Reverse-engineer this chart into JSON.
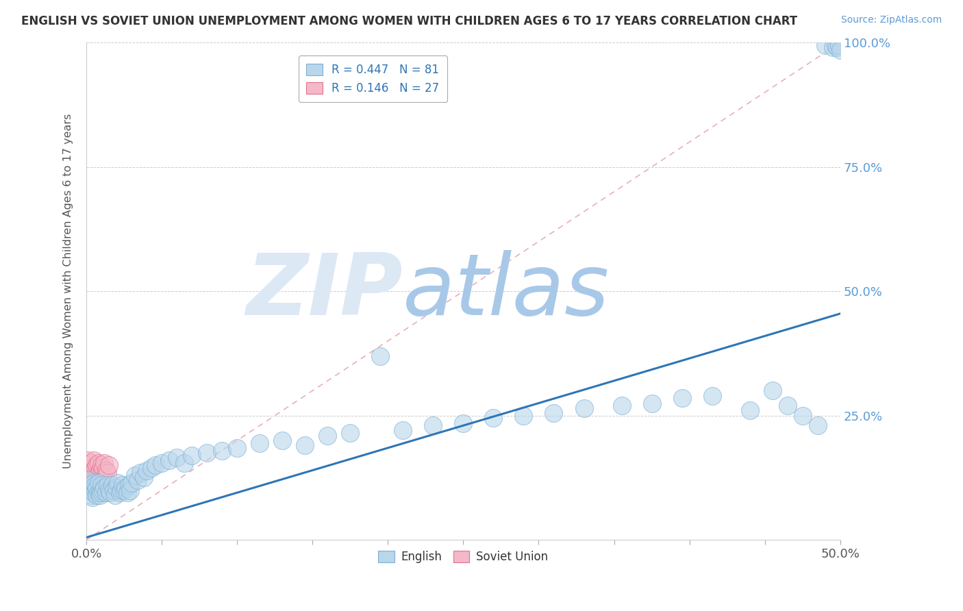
{
  "title": "ENGLISH VS SOVIET UNION UNEMPLOYMENT AMONG WOMEN WITH CHILDREN AGES 6 TO 17 YEARS CORRELATION CHART",
  "source": "Source: ZipAtlas.com",
  "ylabel": "Unemployment Among Women with Children Ages 6 to 17 years",
  "english_R": 0.447,
  "english_N": 81,
  "soviet_R": 0.146,
  "soviet_N": 27,
  "english_color": "#bad6eb",
  "english_edge": "#7ab0d4",
  "soviet_color": "#f5b8c8",
  "soviet_edge": "#e07090",
  "trend_color": "#2E75B6",
  "ref_line_color": "#e8b0b8",
  "background_color": "#ffffff",
  "watermark_zip": "ZIP",
  "watermark_atlas": "atlas",
  "watermark_color_zip": "#dde8f5",
  "watermark_color_atlas": "#a8c8e8",
  "xlim": [
    0.0,
    0.5
  ],
  "ylim": [
    0.0,
    1.0
  ],
  "trend_x": [
    0.0,
    0.5
  ],
  "trend_y": [
    0.005,
    0.455
  ],
  "ref_line_x": [
    0.0,
    0.5
  ],
  "ref_line_y": [
    0.0,
    1.0
  ],
  "english_x": [
    0.001,
    0.002,
    0.003,
    0.003,
    0.004,
    0.004,
    0.005,
    0.005,
    0.006,
    0.006,
    0.007,
    0.007,
    0.008,
    0.008,
    0.009,
    0.009,
    0.01,
    0.01,
    0.011,
    0.012,
    0.013,
    0.014,
    0.015,
    0.016,
    0.017,
    0.018,
    0.019,
    0.02,
    0.021,
    0.022,
    0.023,
    0.024,
    0.025,
    0.026,
    0.027,
    0.028,
    0.029,
    0.03,
    0.032,
    0.034,
    0.036,
    0.038,
    0.04,
    0.043,
    0.046,
    0.05,
    0.055,
    0.06,
    0.065,
    0.07,
    0.08,
    0.09,
    0.1,
    0.115,
    0.13,
    0.145,
    0.16,
    0.175,
    0.195,
    0.21,
    0.23,
    0.25,
    0.27,
    0.29,
    0.31,
    0.33,
    0.355,
    0.375,
    0.395,
    0.415,
    0.44,
    0.455,
    0.465,
    0.475,
    0.485,
    0.49,
    0.495,
    0.497,
    0.498,
    0.499,
    0.5
  ],
  "english_y": [
    0.12,
    0.1,
    0.11,
    0.09,
    0.105,
    0.085,
    0.095,
    0.115,
    0.1,
    0.11,
    0.09,
    0.105,
    0.095,
    0.115,
    0.1,
    0.09,
    0.11,
    0.095,
    0.1,
    0.105,
    0.095,
    0.11,
    0.1,
    0.095,
    0.11,
    0.1,
    0.09,
    0.105,
    0.115,
    0.095,
    0.1,
    0.11,
    0.1,
    0.105,
    0.095,
    0.11,
    0.1,
    0.115,
    0.13,
    0.12,
    0.135,
    0.125,
    0.14,
    0.145,
    0.15,
    0.155,
    0.16,
    0.165,
    0.155,
    0.17,
    0.175,
    0.18,
    0.185,
    0.195,
    0.2,
    0.19,
    0.21,
    0.215,
    0.37,
    0.22,
    0.23,
    0.235,
    0.245,
    0.25,
    0.255,
    0.265,
    0.27,
    0.275,
    0.285,
    0.29,
    0.26,
    0.3,
    0.27,
    0.25,
    0.23,
    0.995,
    0.99,
    0.995,
    0.99,
    0.995,
    0.985
  ],
  "soviet_x": [
    0.001,
    0.001,
    0.002,
    0.002,
    0.003,
    0.003,
    0.004,
    0.004,
    0.005,
    0.005,
    0.006,
    0.006,
    0.007,
    0.007,
    0.008,
    0.008,
    0.009,
    0.009,
    0.01,
    0.01,
    0.011,
    0.011,
    0.012,
    0.012,
    0.013,
    0.014,
    0.015
  ],
  "soviet_y": [
    0.145,
    0.16,
    0.125,
    0.15,
    0.13,
    0.155,
    0.135,
    0.12,
    0.14,
    0.16,
    0.13,
    0.145,
    0.125,
    0.15,
    0.135,
    0.155,
    0.125,
    0.14,
    0.135,
    0.15,
    0.13,
    0.145,
    0.125,
    0.155,
    0.14,
    0.135,
    0.15
  ]
}
